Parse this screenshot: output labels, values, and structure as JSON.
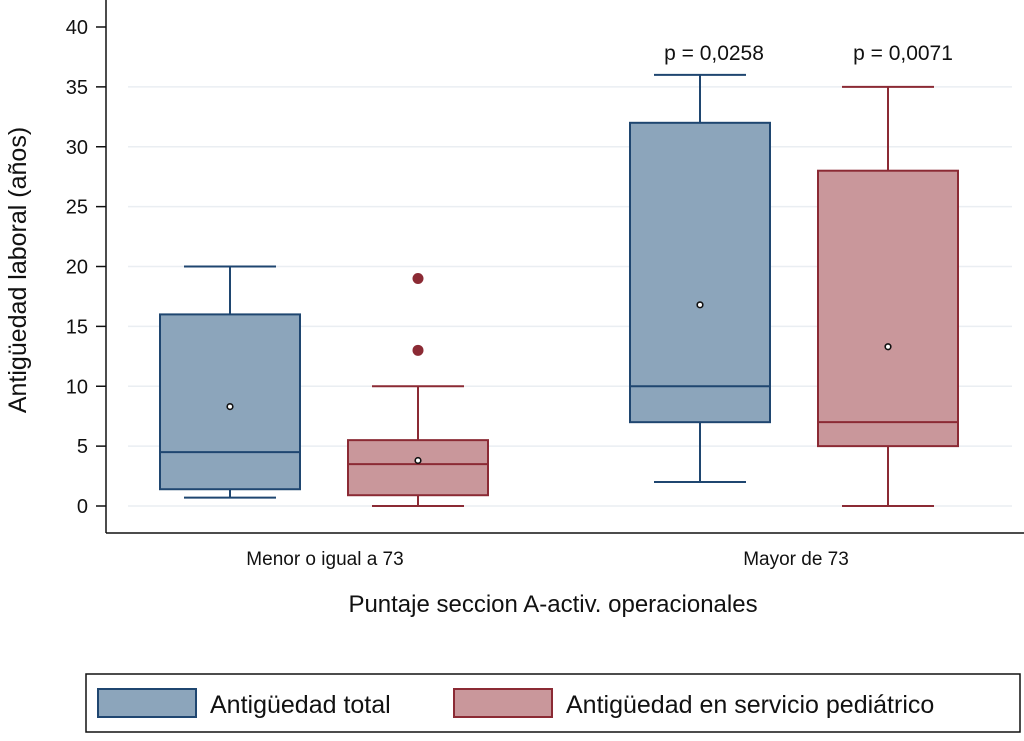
{
  "chart_data": {
    "type": "boxplot",
    "title": "",
    "xlabel": "Puntaje seccion A-activ. operacionales",
    "ylabel": "Antigüedad laboral (años)",
    "ylim": [
      0,
      40
    ],
    "yticks": [
      0,
      5,
      10,
      15,
      20,
      25,
      30,
      35,
      40
    ],
    "grid": true,
    "legend_position": "bottom",
    "categories": [
      "Menor o igual a 73",
      "Mayor de 73"
    ],
    "series": [
      {
        "name": "Antigüedad total",
        "fill": "#8ca5bb",
        "stroke": "#1f4670",
        "boxes": [
          {
            "whisker_low": 0.7,
            "q1": 1.4,
            "median": 4.5,
            "q3": 16,
            "whisker_high": 20,
            "mean": 8.3,
            "outliers": []
          },
          {
            "whisker_low": 2,
            "q1": 7,
            "median": 10,
            "q3": 32,
            "whisker_high": 36,
            "mean": 16.8,
            "outliers": []
          }
        ]
      },
      {
        "name": "Antigüedad en servicio pediátrico",
        "fill": "#c9979b",
        "stroke": "#8b2a34",
        "boxes": [
          {
            "whisker_low": 0,
            "q1": 0.9,
            "median": 3.5,
            "q3": 5.5,
            "whisker_high": 10,
            "mean": 3.8,
            "outliers": [
              13,
              19
            ]
          },
          {
            "whisker_low": 0,
            "q1": 5,
            "median": 7,
            "q3": 28,
            "whisker_high": 35,
            "mean": 13.3,
            "outliers": []
          }
        ]
      }
    ],
    "annotations": [
      "p = 0,0258",
      "p = 0,0071"
    ]
  }
}
